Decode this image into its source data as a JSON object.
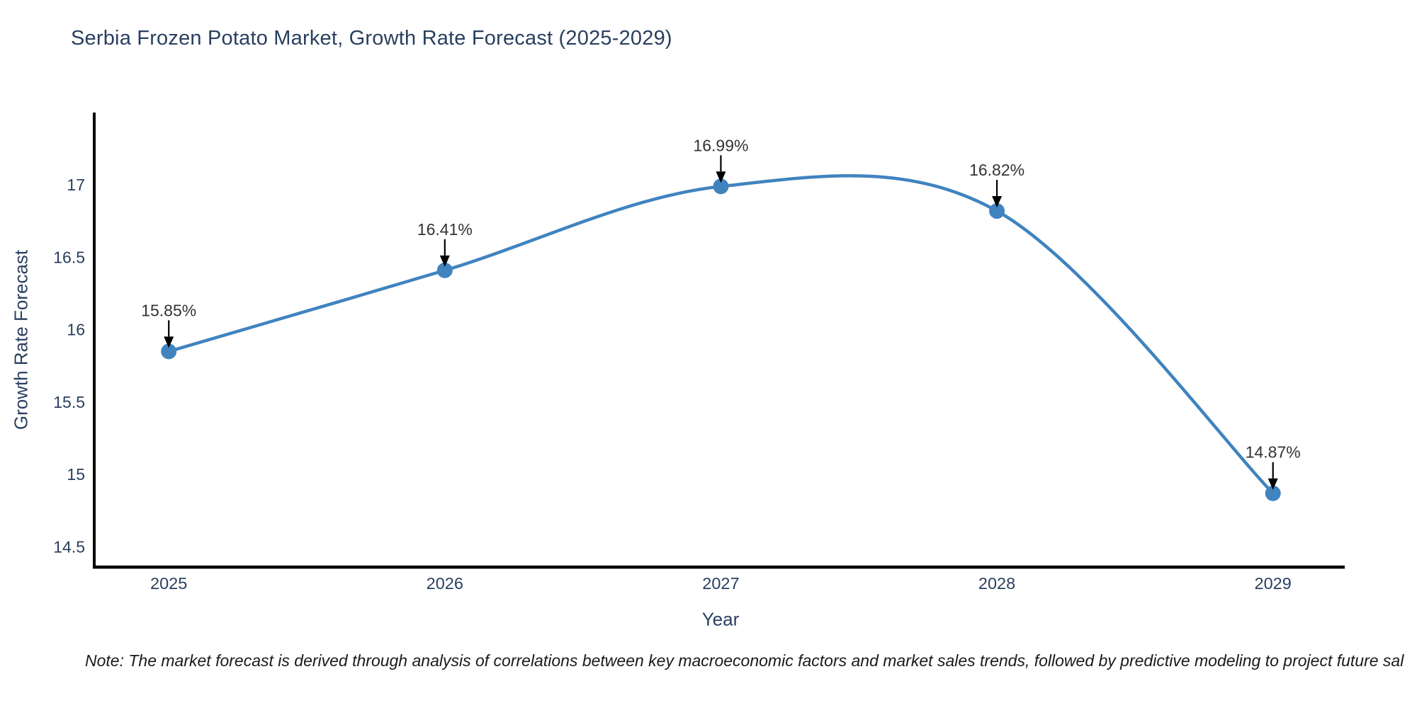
{
  "chart_data": {
    "type": "line",
    "title": "Serbia Frozen Potato Market, Growth Rate Forecast (2025-2029)",
    "xlabel": "Year",
    "ylabel": "Growth Rate Forecast",
    "x": [
      2025,
      2026,
      2027,
      2028,
      2029
    ],
    "y": [
      15.85,
      16.41,
      16.99,
      16.82,
      14.87
    ],
    "point_labels": [
      "15.85%",
      "16.41%",
      "16.99%",
      "16.82%",
      "14.87%"
    ],
    "x_tick_labels": [
      "2025",
      "2026",
      "2027",
      "2028",
      "2029"
    ],
    "y_ticks": [
      "14.5",
      "15",
      "15.5",
      "16",
      "16.5",
      "17"
    ],
    "y_tick_values": [
      14.5,
      15.0,
      15.5,
      16.0,
      16.5,
      17.0
    ],
    "xlim": [
      2024.73,
      2029.26
    ],
    "ylim": [
      14.36,
      17.5
    ],
    "line_shape": "spline",
    "grid": false,
    "legend_position": "none",
    "colors": {
      "series": "#4083bf",
      "axis_text": "#2a3f5f",
      "annotation_text": "#333333",
      "arrow": "#000000",
      "spine": "#000000"
    }
  },
  "note": "Note: The market forecast is derived through analysis of correlations between key macroeconomic factors and market sales trends, followed by predictive modeling to project future sal"
}
